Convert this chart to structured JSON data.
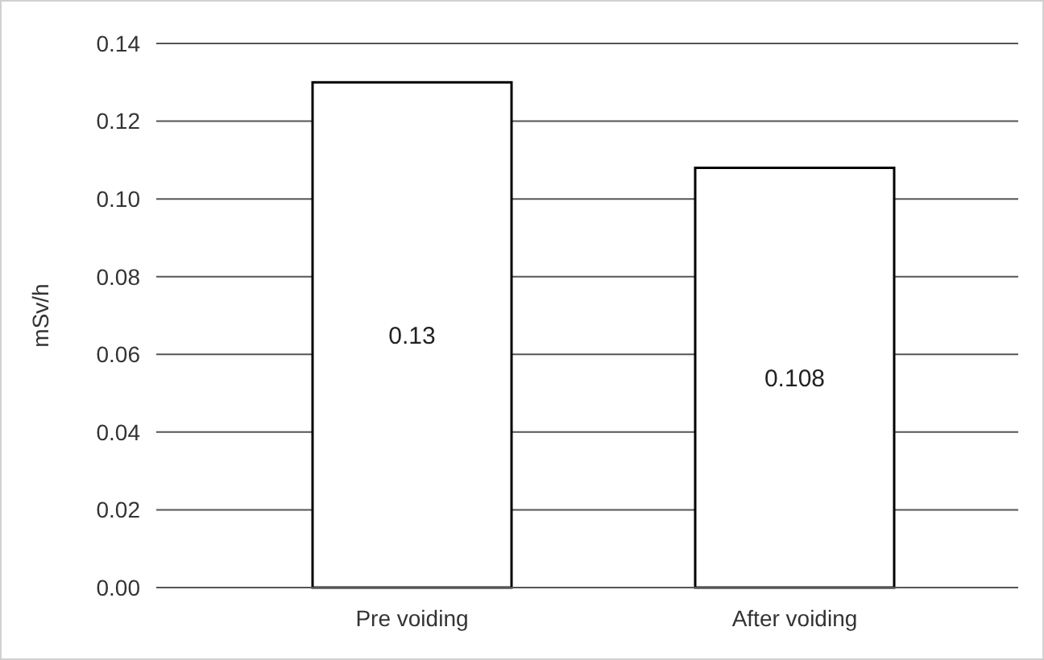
{
  "chart_data": {
    "type": "bar",
    "ylabel": "mSv/h",
    "categories": [
      "Pre voiding",
      "After voiding"
    ],
    "values": [
      0.13,
      0.108
    ],
    "color": "#ffffff",
    "data_labels": true,
    "ylim": [
      0,
      0.14
    ],
    "yticks": [
      {
        "value": 0,
        "label": "0.00"
      },
      0.02,
      0.04,
      0.06,
      0.08,
      {
        "value": 0.1,
        "label": "0.10"
      },
      0.12,
      0.14
    ],
    "grid": "y"
  }
}
